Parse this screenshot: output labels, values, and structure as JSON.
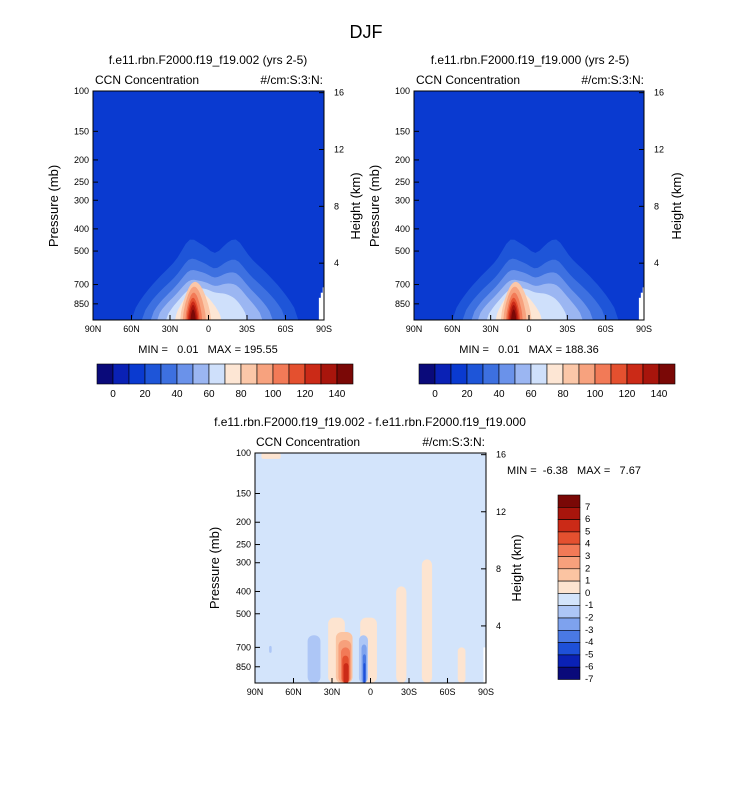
{
  "figure": {
    "title": "DJF"
  },
  "colors": {
    "ccn_palette": [
      "#0a0a7a",
      "#0a21b5",
      "#0a3ad0",
      "#1e55d8",
      "#3d70e0",
      "#6a92ea",
      "#9bb6f2",
      "#cfe0fb",
      "#fde6d4",
      "#fbc7a8",
      "#f7a27e",
      "#f27a57",
      "#e4502f",
      "#cb2a17",
      "#a8150c",
      "#7a0806"
    ],
    "diff_palette": [
      "#0a0a7a",
      "#0a21b5",
      "#1e50d8",
      "#4a79e4",
      "#7ea2ee",
      "#adc6f6",
      "#d3e4fb",
      "#fde4d0",
      "#fbc4a2",
      "#f7a07c",
      "#f27a57",
      "#e4502f",
      "#cb2a17",
      "#a8150c",
      "#7a0806"
    ],
    "diff_background": "#d3e4fb",
    "ccn_background": "#0a3ad0"
  },
  "chart_data": [
    {
      "type": "heatmap",
      "title": "f.e11.rbn.F2000.f19_f19.002 (yrs 2-5)",
      "left_label": "CCN Concentration",
      "right_label": "#/cm:S:3:N:",
      "ylabel": "Pressure (mb)",
      "ylabel_right": "Height (km)",
      "x_ticks": [
        "90N",
        "60N",
        "30N",
        "0",
        "30S",
        "60S",
        "90S"
      ],
      "x_values": [
        90,
        60,
        30,
        0,
        -30,
        -60,
        -90
      ],
      "y_ticks": [
        "100",
        "150",
        "200",
        "250",
        "300",
        "400",
        "500",
        "700",
        "850"
      ],
      "y_values": [
        100,
        150,
        200,
        250,
        300,
        400,
        500,
        700,
        850
      ],
      "right_ticks": [
        "16",
        "12",
        "8",
        "4"
      ],
      "right_values": [
        16,
        12,
        8,
        4
      ],
      "min_max_text": "MIN =   0.01   MAX = 195.55",
      "min": 0.01,
      "max": 195.55,
      "colorbar_labels": [
        "0",
        "20",
        "40",
        "60",
        "80",
        "100",
        "120",
        "140"
      ],
      "colorbar_range": [
        0,
        150
      ],
      "field_peak": {
        "lat": 12,
        "pressure": 860,
        "value": 195.55
      }
    },
    {
      "type": "heatmap",
      "title": "f.e11.rbn.F2000.f19_f19.000 (yrs 2-5)",
      "left_label": "CCN Concentration",
      "right_label": "#/cm:S:3:N:",
      "ylabel": "Pressure (mb)",
      "ylabel_right": "Height (km)",
      "x_ticks": [
        "90N",
        "60N",
        "30N",
        "0",
        "30S",
        "60S",
        "90S"
      ],
      "x_values": [
        90,
        60,
        30,
        0,
        -30,
        -60,
        -90
      ],
      "y_ticks": [
        "100",
        "150",
        "200",
        "250",
        "300",
        "400",
        "500",
        "700",
        "850"
      ],
      "y_values": [
        100,
        150,
        200,
        250,
        300,
        400,
        500,
        700,
        850
      ],
      "right_ticks": [
        "16",
        "12",
        "8",
        "4"
      ],
      "right_values": [
        16,
        12,
        8,
        4
      ],
      "min_max_text": "MIN =   0.01   MAX = 188.36",
      "min": 0.01,
      "max": 188.36,
      "colorbar_labels": [
        "0",
        "20",
        "40",
        "60",
        "80",
        "100",
        "120",
        "140"
      ],
      "colorbar_range": [
        0,
        150
      ],
      "field_peak": {
        "lat": 12,
        "pressure": 860,
        "value": 188.36
      }
    },
    {
      "type": "heatmap",
      "title": "f.e11.rbn.F2000.f19_f19.002 - f.e11.rbn.F2000.f19_f19.000",
      "left_label": "CCN Concentration",
      "right_label": "#/cm:S:3:N:",
      "ylabel": "Pressure (mb)",
      "ylabel_right": "Height (km)",
      "x_ticks": [
        "90N",
        "60N",
        "30N",
        "0",
        "30S",
        "60S",
        "90S"
      ],
      "x_values": [
        90,
        60,
        30,
        0,
        -30,
        -60,
        -90
      ],
      "y_ticks": [
        "100",
        "150",
        "200",
        "250",
        "300",
        "400",
        "500",
        "700",
        "850"
      ],
      "y_values": [
        100,
        150,
        200,
        250,
        300,
        400,
        500,
        700,
        850
      ],
      "right_ticks": [
        "16",
        "12",
        "8",
        "4"
      ],
      "right_values": [
        16,
        12,
        8,
        4
      ],
      "min_max_text": "MIN =  -6.38   MAX =   7.67",
      "min": -6.38,
      "max": 7.67,
      "colorbar_labels": [
        "7",
        "6",
        "5",
        "4",
        "3",
        "2",
        "1",
        "0",
        "-1",
        "-2",
        "-3",
        "-4",
        "-5",
        "-6",
        "-7"
      ],
      "colorbar_levels": [
        7,
        6,
        5,
        4,
        3,
        2,
        1,
        0,
        -1,
        -2,
        -3,
        -4,
        -5,
        -6,
        -7
      ]
    }
  ]
}
